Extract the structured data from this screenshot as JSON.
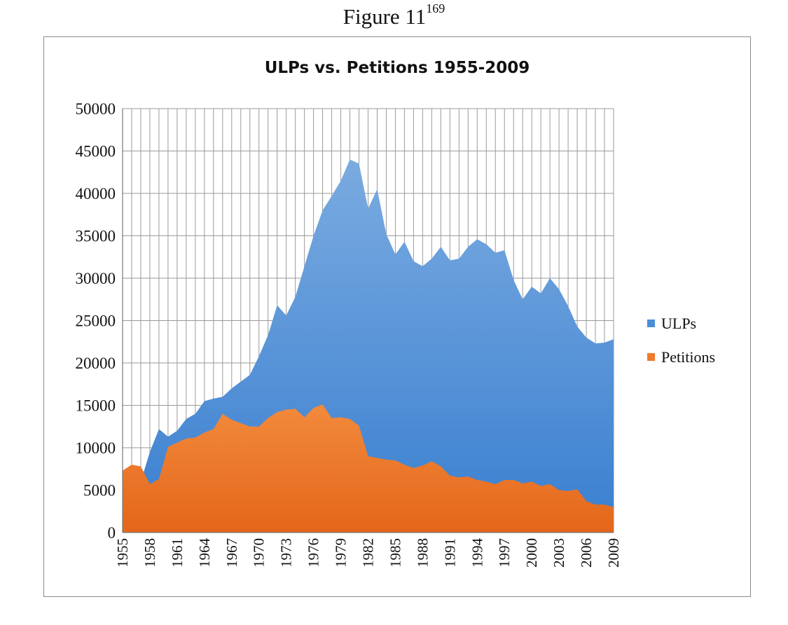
{
  "caption": {
    "text": "Figure 11",
    "superscript": "169"
  },
  "chart_data": {
    "type": "area",
    "title": "ULPs vs. Petitions 1955-2009",
    "xlabel": "",
    "ylabel": "",
    "ylim": [
      0,
      50000
    ],
    "y_ticks": [
      0,
      5000,
      10000,
      15000,
      20000,
      25000,
      30000,
      35000,
      40000,
      45000,
      50000
    ],
    "x_tick_labels": [
      "1955",
      "1958",
      "1961",
      "1964",
      "1967",
      "1970",
      "1973",
      "1976",
      "1979",
      "1982",
      "1985",
      "1988",
      "1991",
      "1994",
      "1997",
      "2000",
      "2003",
      "2006",
      "2009"
    ],
    "grid": true,
    "legend_position": "right",
    "x": [
      1955,
      1956,
      1957,
      1958,
      1959,
      1960,
      1961,
      1962,
      1963,
      1964,
      1965,
      1966,
      1967,
      1968,
      1969,
      1970,
      1971,
      1972,
      1973,
      1974,
      1975,
      1976,
      1977,
      1978,
      1979,
      1980,
      1981,
      1982,
      1983,
      1984,
      1985,
      1986,
      1987,
      1988,
      1989,
      1990,
      1991,
      1992,
      1993,
      1994,
      1995,
      1996,
      1997,
      1998,
      1999,
      2000,
      2001,
      2002,
      2003,
      2004,
      2005,
      2006,
      2007,
      2008,
      2009
    ],
    "series": [
      {
        "name": "ULPs",
        "color": "#4a8fd8",
        "values": [
          5500,
          6000,
          6000,
          9500,
          12200,
          11300,
          12000,
          13400,
          14000,
          15500,
          15800,
          16000,
          17000,
          17800,
          18600,
          20800,
          23300,
          26800,
          25600,
          27800,
          31400,
          35000,
          38000,
          39700,
          41500,
          44000,
          43500,
          38200,
          40500,
          35200,
          32800,
          34300,
          32000,
          31400,
          32300,
          33700,
          32100,
          32300,
          33700,
          34600,
          34000,
          33000,
          33300,
          29800,
          27500,
          29000,
          28200,
          30000,
          28700,
          26700,
          24300,
          23000,
          22300,
          22400,
          22800
        ]
      },
      {
        "name": "Petitions",
        "color": "#ef7b2b",
        "values": [
          7300,
          8000,
          7800,
          5700,
          6300,
          10100,
          10600,
          11100,
          11200,
          11800,
          12200,
          14000,
          13300,
          12900,
          12500,
          12500,
          13500,
          14200,
          14500,
          14600,
          13600,
          14700,
          15100,
          13500,
          13600,
          13400,
          12600,
          9000,
          8800,
          8600,
          8500,
          8000,
          7600,
          7900,
          8400,
          7800,
          6700,
          6500,
          6600,
          6200,
          6000,
          5700,
          6200,
          6200,
          5800,
          6000,
          5500,
          5700,
          5000,
          4900,
          5100,
          3700,
          3300,
          3300,
          3000
        ]
      }
    ]
  }
}
